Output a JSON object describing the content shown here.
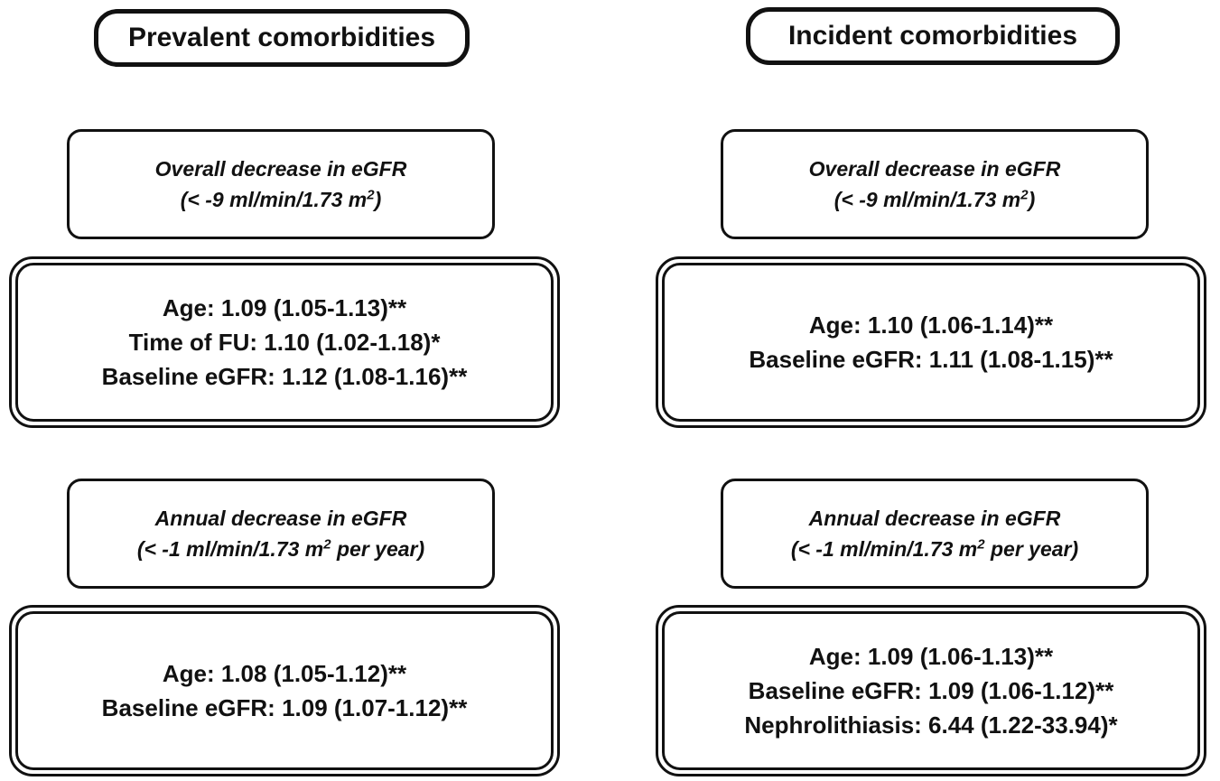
{
  "columns": [
    {
      "header": "Prevalent comorbidities",
      "overall": {
        "criterion_title": "Overall decrease in eGFR",
        "criterion_prefix": "(< -9 ml/min/1.73 m",
        "criterion_sup": "2",
        "criterion_suffix": ")",
        "results": [
          "Age: 1.09 (1.05-1.13)**",
          "Time of FU: 1.10 (1.02-1.18)*",
          "Baseline eGFR: 1.12 (1.08-1.16)**"
        ]
      },
      "annual": {
        "criterion_title": "Annual decrease in eGFR",
        "criterion_prefix": "(< -1 ml/min/1.73 m",
        "criterion_sup": "2",
        "criterion_suffix": " per year)",
        "results": [
          "Age: 1.08 (1.05-1.12)**",
          "Baseline eGFR: 1.09 (1.07-1.12)**"
        ]
      }
    },
    {
      "header": "Incident comorbidities",
      "overall": {
        "criterion_title": "Overall decrease in eGFR",
        "criterion_prefix": "(< -9 ml/min/1.73 m",
        "criterion_sup": "2",
        "criterion_suffix": ")",
        "results": [
          "Age: 1.10 (1.06-1.14)**",
          "Baseline eGFR: 1.11 (1.08-1.15)**"
        ]
      },
      "annual": {
        "criterion_title": "Annual decrease in eGFR",
        "criterion_prefix": "(< -1 ml/min/1.73 m",
        "criterion_sup": "2",
        "criterion_suffix": " per year)",
        "results": [
          "Age: 1.09 (1.06-1.13)**",
          "Baseline eGFR: 1.09 (1.06-1.12)**",
          "Nephrolithiasis: 6.44 (1.22-33.94)*"
        ]
      }
    }
  ]
}
